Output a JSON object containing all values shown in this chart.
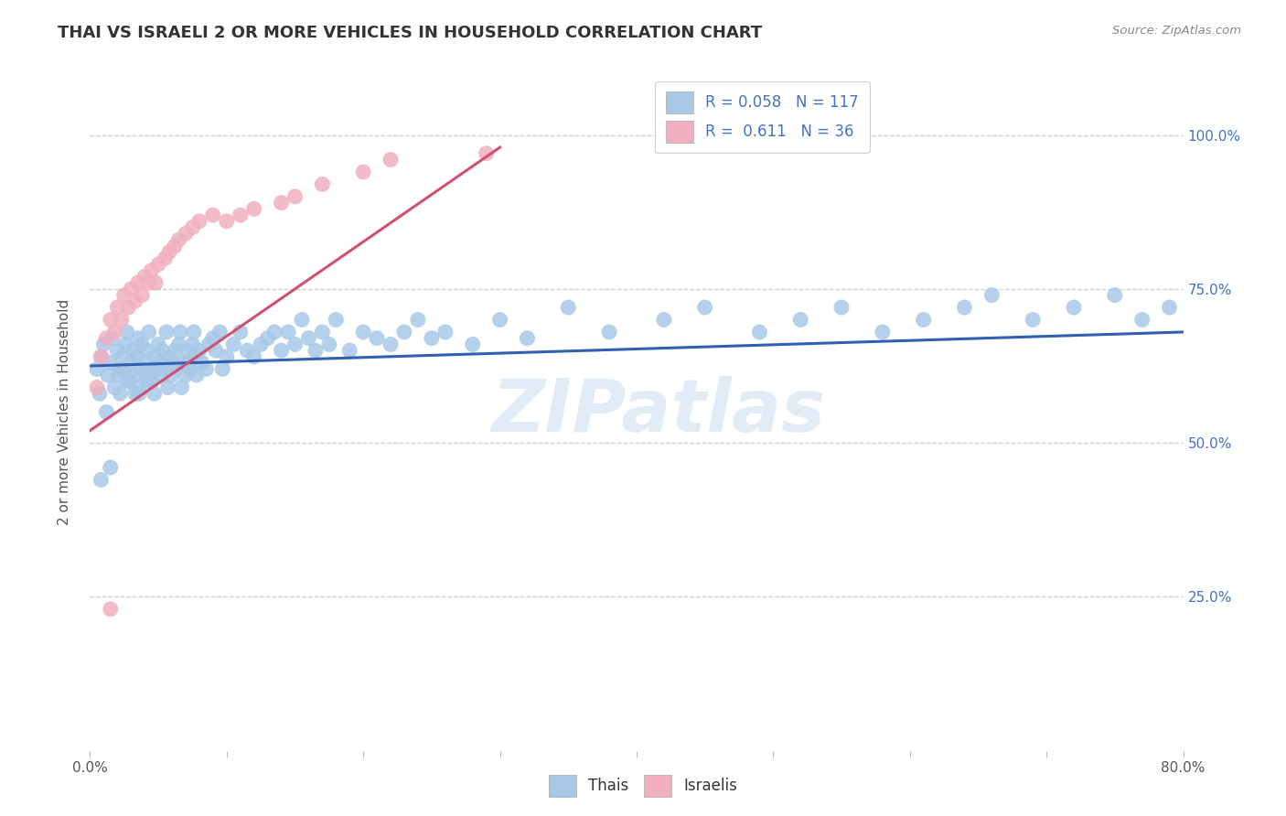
{
  "title": "THAI VS ISRAELI 2 OR MORE VEHICLES IN HOUSEHOLD CORRELATION CHART",
  "source": "Source: ZipAtlas.com",
  "ylabel": "2 or more Vehicles in Household",
  "xlim": [
    0.0,
    0.8
  ],
  "ylim": [
    0.0,
    1.1
  ],
  "thai_color": "#a8c8e8",
  "israeli_color": "#f0b0c0",
  "thai_line_color": "#3060b0",
  "israeli_line_color": "#d05070",
  "thai_R": 0.058,
  "thai_N": 117,
  "israeli_R": 0.611,
  "israeli_N": 36,
  "watermark": "ZIPatlas",
  "thai_scatter_x": [
    0.005,
    0.007,
    0.008,
    0.01,
    0.012,
    0.013,
    0.015,
    0.016,
    0.018,
    0.02,
    0.021,
    0.022,
    0.023,
    0.025,
    0.026,
    0.027,
    0.028,
    0.03,
    0.031,
    0.032,
    0.033,
    0.034,
    0.035,
    0.036,
    0.037,
    0.038,
    0.04,
    0.041,
    0.042,
    0.043,
    0.045,
    0.046,
    0.047,
    0.048,
    0.05,
    0.051,
    0.052,
    0.053,
    0.055,
    0.056,
    0.057,
    0.058,
    0.06,
    0.061,
    0.062,
    0.063,
    0.065,
    0.066,
    0.067,
    0.068,
    0.07,
    0.071,
    0.072,
    0.073,
    0.075,
    0.076,
    0.077,
    0.078,
    0.08,
    0.082,
    0.085,
    0.087,
    0.09,
    0.092,
    0.095,
    0.097,
    0.1,
    0.105,
    0.11,
    0.115,
    0.12,
    0.125,
    0.13,
    0.135,
    0.14,
    0.145,
    0.15,
    0.155,
    0.16,
    0.165,
    0.17,
    0.175,
    0.18,
    0.19,
    0.2,
    0.21,
    0.22,
    0.23,
    0.24,
    0.25,
    0.26,
    0.28,
    0.3,
    0.32,
    0.35,
    0.38,
    0.42,
    0.45,
    0.49,
    0.52,
    0.55,
    0.58,
    0.61,
    0.64,
    0.66,
    0.69,
    0.72,
    0.75,
    0.77,
    0.79,
    0.008,
    0.015,
    0.022,
    0.029,
    0.036,
    0.043,
    0.05
  ],
  "thai_scatter_y": [
    0.62,
    0.58,
    0.64,
    0.66,
    0.55,
    0.61,
    0.63,
    0.67,
    0.59,
    0.65,
    0.61,
    0.58,
    0.64,
    0.62,
    0.66,
    0.68,
    0.6,
    0.63,
    0.65,
    0.61,
    0.58,
    0.64,
    0.67,
    0.59,
    0.62,
    0.66,
    0.63,
    0.61,
    0.65,
    0.68,
    0.6,
    0.62,
    0.58,
    0.64,
    0.66,
    0.63,
    0.61,
    0.65,
    0.62,
    0.68,
    0.59,
    0.64,
    0.61,
    0.63,
    0.65,
    0.62,
    0.66,
    0.68,
    0.59,
    0.63,
    0.61,
    0.65,
    0.63,
    0.62,
    0.66,
    0.68,
    0.64,
    0.61,
    0.65,
    0.63,
    0.62,
    0.66,
    0.67,
    0.65,
    0.68,
    0.62,
    0.64,
    0.66,
    0.68,
    0.65,
    0.64,
    0.66,
    0.67,
    0.68,
    0.65,
    0.68,
    0.66,
    0.7,
    0.67,
    0.65,
    0.68,
    0.66,
    0.7,
    0.65,
    0.68,
    0.67,
    0.66,
    0.68,
    0.7,
    0.67,
    0.68,
    0.66,
    0.7,
    0.67,
    0.72,
    0.68,
    0.7,
    0.72,
    0.68,
    0.7,
    0.72,
    0.68,
    0.7,
    0.72,
    0.74,
    0.7,
    0.72,
    0.74,
    0.7,
    0.72,
    0.44,
    0.46,
    0.62,
    0.6,
    0.58,
    0.6,
    0.62
  ],
  "israeli_scatter_x": [
    0.005,
    0.008,
    0.012,
    0.015,
    0.018,
    0.02,
    0.023,
    0.025,
    0.028,
    0.03,
    0.033,
    0.035,
    0.038,
    0.04,
    0.043,
    0.045,
    0.048,
    0.05,
    0.055,
    0.058,
    0.062,
    0.065,
    0.07,
    0.075,
    0.08,
    0.09,
    0.1,
    0.11,
    0.12,
    0.14,
    0.15,
    0.17,
    0.2,
    0.22,
    0.29,
    0.015
  ],
  "israeli_scatter_y": [
    0.59,
    0.64,
    0.67,
    0.7,
    0.68,
    0.72,
    0.7,
    0.74,
    0.72,
    0.75,
    0.73,
    0.76,
    0.74,
    0.77,
    0.76,
    0.78,
    0.76,
    0.79,
    0.8,
    0.81,
    0.82,
    0.83,
    0.84,
    0.85,
    0.86,
    0.87,
    0.86,
    0.87,
    0.88,
    0.89,
    0.9,
    0.92,
    0.94,
    0.96,
    0.97,
    0.23
  ]
}
